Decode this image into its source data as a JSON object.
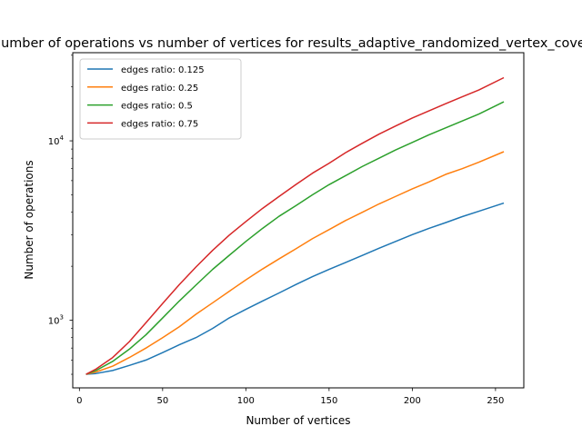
{
  "chart_data": {
    "type": "line",
    "title": "Number of operations vs number of vertices for results_adaptive_randomized_vertex_cover",
    "xlabel": "Number of vertices",
    "ylabel": "Number of operations",
    "yscale": "log",
    "xlim": [
      -4,
      267
    ],
    "ylim": [
      420,
      31000
    ],
    "x_ticks": [
      0,
      50,
      100,
      150,
      200,
      250
    ],
    "y_ticks": [
      1000,
      10000
    ],
    "y_tick_labels": [
      "10^3",
      "10^4"
    ],
    "legend_position": "top-left",
    "grid": false,
    "x": [
      4,
      10,
      20,
      30,
      40,
      50,
      60,
      70,
      80,
      90,
      100,
      110,
      120,
      130,
      140,
      150,
      160,
      170,
      180,
      190,
      200,
      210,
      220,
      230,
      240,
      255
    ],
    "series": [
      {
        "name": "edges ratio: 0.125",
        "color": "#1f77b4",
        "values": [
          500,
          505,
          525,
          560,
          600,
          660,
          730,
          800,
          900,
          1030,
          1150,
          1280,
          1420,
          1580,
          1750,
          1920,
          2100,
          2300,
          2520,
          2750,
          3000,
          3250,
          3500,
          3780,
          4050,
          4500
        ]
      },
      {
        "name": "edges ratio: 0.25",
        "color": "#ff7f0e",
        "values": [
          500,
          515,
          555,
          620,
          700,
          800,
          920,
          1080,
          1250,
          1450,
          1680,
          1930,
          2200,
          2500,
          2850,
          3200,
          3600,
          4000,
          4450,
          4900,
          5400,
          5900,
          6500,
          7000,
          7600,
          8700
        ]
      },
      {
        "name": "edges ratio: 0.5",
        "color": "#2ca02c",
        "values": [
          500,
          525,
          590,
          690,
          830,
          1030,
          1280,
          1570,
          1920,
          2300,
          2750,
          3250,
          3800,
          4350,
          5000,
          5700,
          6400,
          7200,
          8000,
          8900,
          9800,
          10800,
          11800,
          12900,
          14100,
          16500
        ]
      },
      {
        "name": "edges ratio: 0.75",
        "color": "#d62728",
        "values": [
          500,
          535,
          620,
          760,
          970,
          1240,
          1580,
          1980,
          2450,
          2980,
          3550,
          4200,
          4900,
          5700,
          6600,
          7500,
          8600,
          9700,
          10900,
          12100,
          13400,
          14700,
          16100,
          17600,
          19200,
          22500
        ]
      }
    ]
  }
}
